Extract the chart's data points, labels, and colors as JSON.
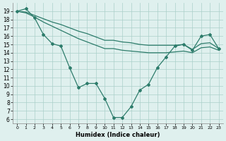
{
  "line1_x": [
    0,
    1,
    2,
    3,
    4,
    5,
    6,
    7,
    8,
    9,
    10,
    11,
    12,
    13,
    14,
    15,
    16,
    17,
    18,
    19,
    20,
    21,
    22,
    23
  ],
  "line1_y": [
    19.0,
    19.3,
    18.2,
    16.2,
    15.1,
    14.8,
    12.2,
    9.8,
    10.3,
    10.3,
    8.5,
    6.2,
    6.2,
    7.5,
    9.5,
    10.2,
    12.2,
    13.5,
    14.8,
    15.0,
    14.3,
    16.0,
    16.2,
    14.5
  ],
  "line2_x": [
    0,
    1,
    2,
    3,
    4,
    5,
    6,
    7,
    8,
    9,
    10,
    11,
    12,
    13,
    14,
    15,
    16,
    17,
    18,
    19,
    20,
    21,
    22,
    23
  ],
  "line2_y": [
    19.0,
    18.9,
    18.5,
    18.1,
    17.7,
    17.4,
    17.0,
    16.6,
    16.3,
    15.9,
    15.5,
    15.5,
    15.3,
    15.2,
    15.0,
    14.9,
    14.9,
    14.9,
    14.9,
    15.0,
    14.4,
    15.1,
    15.2,
    14.5
  ],
  "line3_x": [
    0,
    1,
    2,
    3,
    4,
    5,
    6,
    7,
    8,
    9,
    10,
    11,
    12,
    13,
    14,
    15,
    16,
    17,
    18,
    19,
    20,
    21,
    22,
    23
  ],
  "line3_y": [
    19.0,
    18.8,
    18.3,
    17.7,
    17.2,
    16.7,
    16.2,
    15.7,
    15.3,
    14.9,
    14.5,
    14.5,
    14.3,
    14.2,
    14.1,
    14.0,
    14.0,
    14.0,
    14.1,
    14.2,
    14.0,
    14.6,
    14.7,
    14.3
  ],
  "color": "#2d7c6b",
  "bg_color": "#dff0ee",
  "grid_color": "#aacfca",
  "xlabel": "Humidex (Indice chaleur)",
  "xlim": [
    -0.5,
    23.5
  ],
  "ylim": [
    5.5,
    20.0
  ],
  "yticks": [
    6,
    7,
    8,
    9,
    10,
    11,
    12,
    13,
    14,
    15,
    16,
    17,
    18,
    19
  ],
  "xticks": [
    0,
    1,
    2,
    3,
    4,
    5,
    6,
    7,
    8,
    9,
    10,
    11,
    12,
    13,
    14,
    15,
    16,
    17,
    18,
    19,
    20,
    21,
    22,
    23
  ],
  "marker": "D",
  "marker_size": 2.0,
  "linewidth": 0.9,
  "xlabel_fontsize": 6.0,
  "tick_fontsize_x": 4.5,
  "tick_fontsize_y": 5.5
}
